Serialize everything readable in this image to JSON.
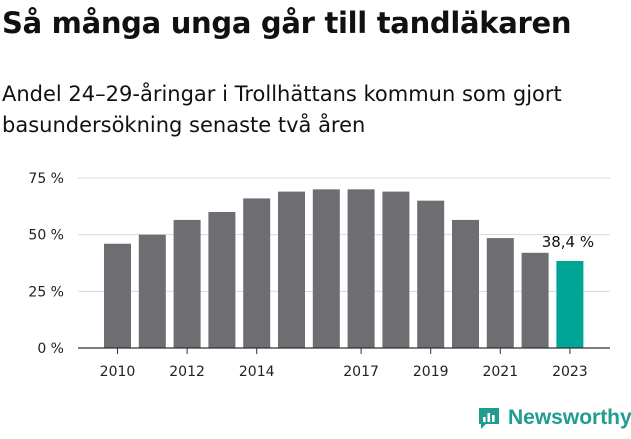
{
  "title": "Så många unga går till tandläkaren",
  "subtitle": "Andel 24–29-åringar i Trollhättans kommun som gjort basundersökning senaste två åren",
  "brand": {
    "name": "Newsworthy",
    "logo_icon": "newsworthy-chart-bubble-icon"
  },
  "chart_data": {
    "type": "bar",
    "categories": [
      "2010",
      "2011",
      "2012",
      "2013",
      "2014",
      "2015",
      "2016",
      "2017",
      "2018",
      "2019",
      "2020",
      "2021",
      "2022",
      "2023"
    ],
    "values": [
      46.0,
      50.0,
      56.5,
      60.0,
      66.0,
      69.0,
      70.0,
      70.0,
      69.0,
      65.0,
      56.5,
      48.5,
      42.0,
      38.4
    ],
    "x_tick_labels": [
      "2010",
      "2012",
      "2014",
      "2017",
      "2019",
      "2021",
      "2023"
    ],
    "y_ticks": [
      0,
      25,
      50,
      75
    ],
    "y_tick_labels": [
      "0 %",
      "25 %",
      "50 %",
      "75 %"
    ],
    "ylim": [
      0,
      80
    ],
    "annotation": {
      "category": "2023",
      "text": "38,4 %"
    },
    "highlight_category": "2023",
    "grid": true,
    "colors": {
      "bar": "#6e6d72",
      "highlight": "#00a596",
      "grid": "#d9d9d9",
      "axis": "#333333"
    }
  }
}
